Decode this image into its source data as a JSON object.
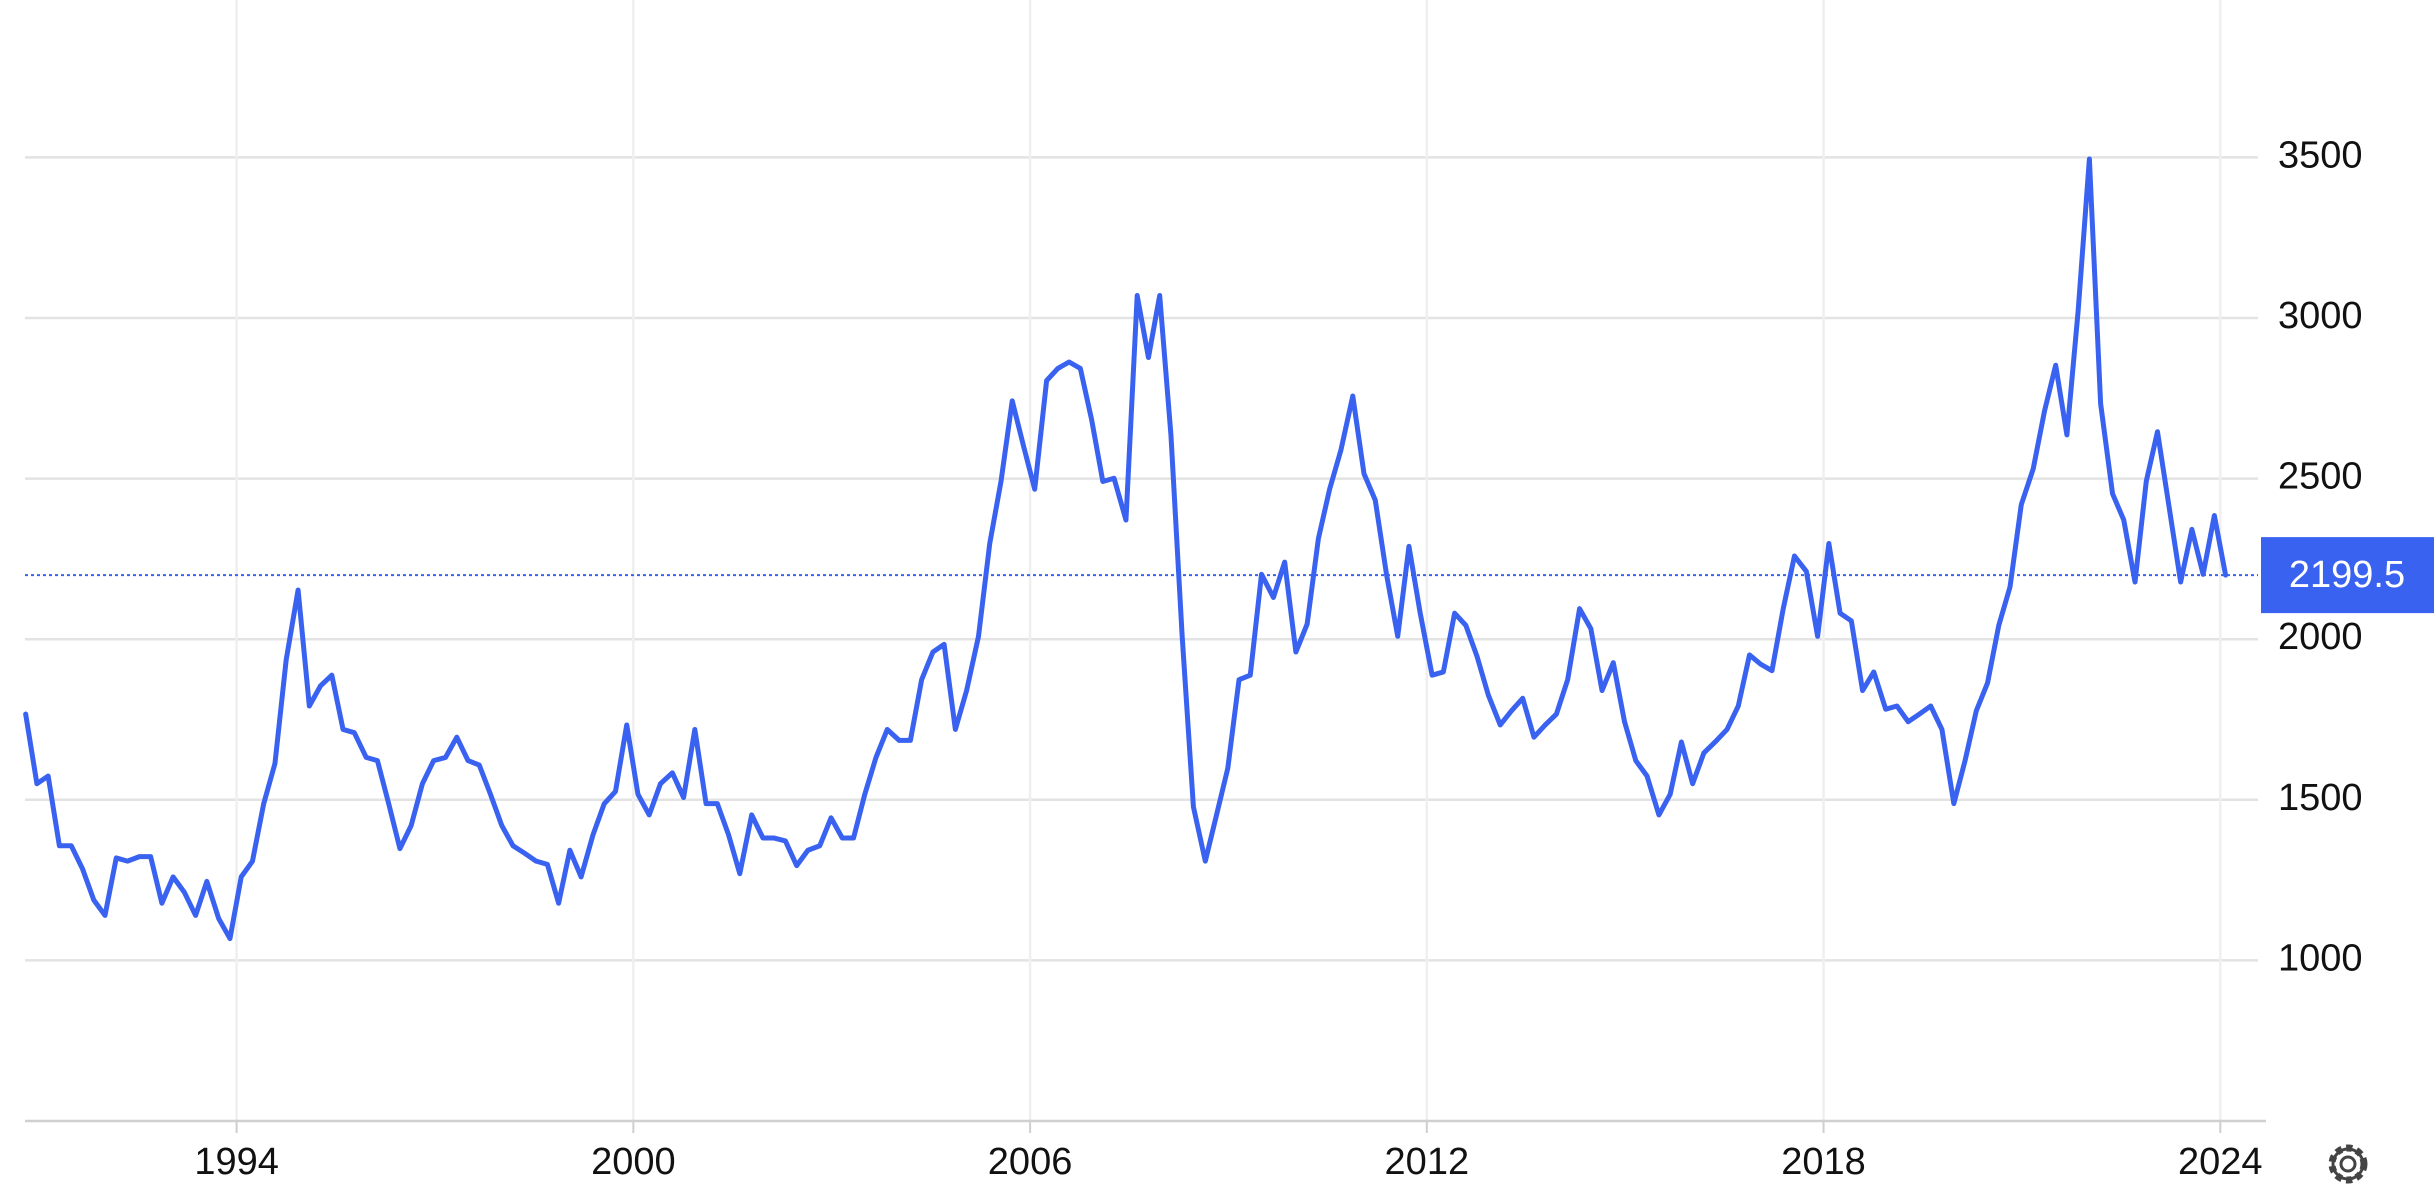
{
  "chart_data": {
    "type": "line",
    "color": "#3a62f0",
    "grid": true,
    "xlim": [
      1990.8,
      2024.57
    ],
    "xticks": [
      1994,
      2000,
      2006,
      2012,
      2018,
      2024
    ],
    "ylim": [
      500,
      3990
    ],
    "yticks": [
      1000,
      1500,
      2000,
      2500,
      3000,
      3500
    ],
    "x": [
      1990.81,
      1990.98,
      1991.15,
      1991.32,
      1991.5,
      1991.67,
      1991.84,
      1992.01,
      1992.18,
      1992.35,
      1992.53,
      1992.7,
      1992.87,
      1993.04,
      1993.21,
      1993.38,
      1993.55,
      1993.73,
      1993.9,
      1994.07,
      1994.24,
      1994.41,
      1994.58,
      1994.75,
      1994.93,
      1995.1,
      1995.27,
      1995.44,
      1995.61,
      1995.78,
      1995.96,
      1996.13,
      1996.3,
      1996.47,
      1996.64,
      1996.81,
      1996.98,
      1997.16,
      1997.33,
      1997.5,
      1997.67,
      1997.84,
      1998.01,
      1998.18,
      1998.36,
      1998.53,
      1998.7,
      1998.87,
      1999.04,
      1999.21,
      1999.39,
      1999.56,
      1999.73,
      1999.9,
      2000.07,
      2000.24,
      2000.41,
      2000.59,
      2000.76,
      2000.93,
      2001.1,
      2001.27,
      2001.44,
      2001.61,
      2001.79,
      2001.96,
      2002.13,
      2002.3,
      2002.47,
      2002.64,
      2002.82,
      2002.99,
      2003.16,
      2003.33,
      2003.5,
      2003.67,
      2003.84,
      2004.02,
      2004.19,
      2004.36,
      2004.53,
      2004.7,
      2004.87,
      2005.04,
      2005.22,
      2005.39,
      2005.56,
      2005.73,
      2005.9,
      2006.07,
      2006.25,
      2006.42,
      2006.59,
      2006.76,
      2006.93,
      2007.1,
      2007.27,
      2007.45,
      2007.62,
      2007.79,
      2007.96,
      2008.13,
      2008.3,
      2008.47,
      2008.65,
      2008.82,
      2008.99,
      2009.16,
      2009.33,
      2009.5,
      2009.68,
      2009.85,
      2010.02,
      2010.19,
      2010.36,
      2010.53,
      2010.7,
      2010.88,
      2011.05,
      2011.22,
      2011.39,
      2011.56,
      2011.73,
      2011.9,
      2012.08,
      2012.25,
      2012.42,
      2012.59,
      2012.76,
      2012.93,
      2013.11,
      2013.28,
      2013.45,
      2013.62,
      2013.79,
      2013.96,
      2014.13,
      2014.31,
      2014.48,
      2014.65,
      2014.82,
      2014.99,
      2015.16,
      2015.33,
      2015.51,
      2015.68,
      2015.85,
      2016.02,
      2016.19,
      2016.36,
      2016.54,
      2016.71,
      2016.88,
      2017.05,
      2017.22,
      2017.39,
      2017.56,
      2017.74,
      2017.91,
      2018.08,
      2018.25,
      2018.42,
      2018.59,
      2018.76,
      2018.94,
      2019.11,
      2019.28,
      2019.45,
      2019.62,
      2019.79,
      2019.97,
      2020.14,
      2020.31,
      2020.48,
      2020.65,
      2020.82,
      2020.99,
      2021.17,
      2021.34,
      2021.51,
      2021.68,
      2021.85,
      2022.02,
      2022.19,
      2022.37,
      2022.54,
      2022.71,
      2022.88,
      2023.05,
      2023.22,
      2023.4,
      2023.57,
      2023.74,
      2023.91,
      2024.08
    ],
    "values": [
      1767,
      1550,
      1574,
      1357,
      1357,
      1285,
      1188,
      1140,
      1319,
      1309,
      1323,
      1323,
      1178,
      1260,
      1212,
      1140,
      1246,
      1130,
      1068,
      1260,
      1309,
      1488,
      1613,
      1936,
      2153,
      1792,
      1855,
      1888,
      1719,
      1709,
      1632,
      1622,
      1488,
      1348,
      1420,
      1550,
      1622,
      1632,
      1695,
      1622,
      1608,
      1517,
      1420,
      1357,
      1333,
      1309,
      1299,
      1178,
      1343,
      1260,
      1391,
      1488,
      1526,
      1733,
      1517,
      1453,
      1550,
      1584,
      1507,
      1719,
      1488,
      1488,
      1391,
      1270,
      1453,
      1381,
      1381,
      1372,
      1295,
      1343,
      1357,
      1444,
      1381,
      1381,
      1517,
      1632,
      1719,
      1685,
      1685,
      1874,
      1960,
      1984,
      1719,
      1840,
      2009,
      2298,
      2491,
      2742,
      2602,
      2467,
      2805,
      2843,
      2863,
      2843,
      2684,
      2491,
      2501,
      2371,
      3070,
      2877,
      3070,
      2636,
      2009,
      1478,
      1309,
      1453,
      1598,
      1874,
      1888,
      2202,
      2130,
      2240,
      1960,
      2047,
      2313,
      2467,
      2588,
      2757,
      2515,
      2433,
      2202,
      2009,
      2289,
      2081,
      1888,
      1898,
      2081,
      2043,
      1946,
      1826,
      1733,
      1777,
      1816,
      1695,
      1733,
      1767,
      1874,
      2095,
      2033,
      1840,
      1927,
      1743,
      1622,
      1574,
      1453,
      1517,
      1680,
      1550,
      1646,
      1680,
      1719,
      1792,
      1951,
      1922,
      1902,
      2095,
      2259,
      2211,
      2009,
      2298,
      2081,
      2057,
      1840,
      1898,
      1782,
      1792,
      1743,
      1767,
      1792,
      1719,
      1488,
      1622,
      1777,
      1864,
      2043,
      2163,
      2419,
      2530,
      2709,
      2853,
      2636,
      3022,
      3495,
      2733,
      2453,
      2371,
      2178,
      2491,
      2646,
      2419,
      2178,
      2342,
      2202,
      2385,
      2199.5
    ]
  }
}
